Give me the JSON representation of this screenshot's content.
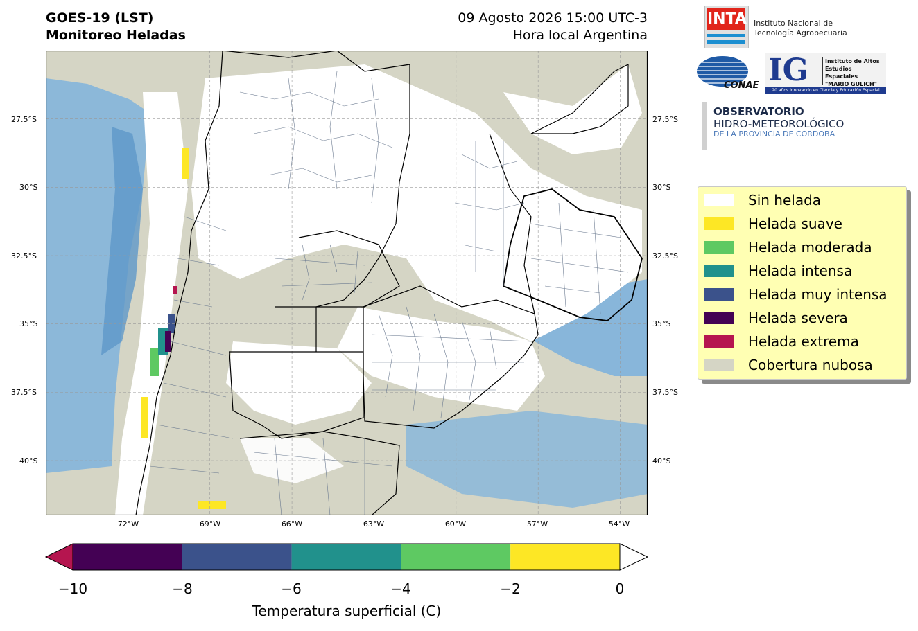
{
  "header": {
    "title_line1": "GOES-19 (LST)",
    "title_line2": "Monitoreo Heladas",
    "datetime": "09 Agosto 2026 15:00 UTC-3",
    "timezone_note": "Hora local Argentina"
  },
  "map": {
    "lat_labels": [
      "27.5°S",
      "30°S",
      "32.5°S",
      "35°S",
      "37.5°S",
      "40°S"
    ],
    "lon_labels": [
      "72°W",
      "69°W",
      "66°W",
      "63°W",
      "60°W",
      "57°W",
      "54°W"
    ],
    "lat_values": [
      -27.5,
      -30,
      -32.5,
      -35,
      -37.5,
      -40
    ],
    "lon_values": [
      -72,
      -69,
      -66,
      -63,
      -60,
      -57,
      -54
    ],
    "extent": {
      "lon_min": -75,
      "lon_max": -53,
      "lat_min": -42,
      "lat_max": -25
    },
    "background_color": "#d5d5c5",
    "water_color": "#7fb3dc",
    "grid": true
  },
  "logos": {
    "inta_mark": "INTA",
    "inta_name_line1": "Instituto Nacional de",
    "inta_name_line2": "Tecnología Agropecuaria",
    "conae_mark": "CONAE",
    "ig_mark": "IG",
    "ig_name_line1": "Instituto de Altos",
    "ig_name_line2": "Estudios Espaciales",
    "ig_name_line3": "\"MARIO GULICH\"",
    "ig_tagline": "20 años innovando en Ciencia y Educación Espacial",
    "obs_line1": "OBSERVATORIO",
    "obs_line2": "HIDRO-METEOROLÓGICO",
    "obs_line3": "DE LA PROVINCIA DE CÓRDOBA"
  },
  "legend": {
    "items": [
      {
        "label": "Sin helada",
        "color": "#ffffff"
      },
      {
        "label": "Helada suave",
        "color": "#fde725"
      },
      {
        "label": "Helada moderada",
        "color": "#5ec962"
      },
      {
        "label": "Helada intensa",
        "color": "#21918c"
      },
      {
        "label": "Helada muy intensa",
        "color": "#3b528b"
      },
      {
        "label": "Helada severa",
        "color": "#440154"
      },
      {
        "label": "Helada extrema",
        "color": "#b5154f"
      },
      {
        "label": "Cobertura nubosa",
        "color": "#d5d5c5"
      }
    ]
  },
  "colorbar": {
    "label": "Temperatura superficial (C)",
    "ticks": [
      "−10",
      "−8",
      "−6",
      "−4",
      "−2",
      "0"
    ],
    "bounds": [
      -10,
      -8,
      -6,
      -4,
      -2,
      0
    ],
    "colors": [
      "#440154",
      "#3b528b",
      "#21918c",
      "#5ec962",
      "#fde725"
    ],
    "under_color": "#b5154f",
    "over_color": "#ffffff"
  }
}
